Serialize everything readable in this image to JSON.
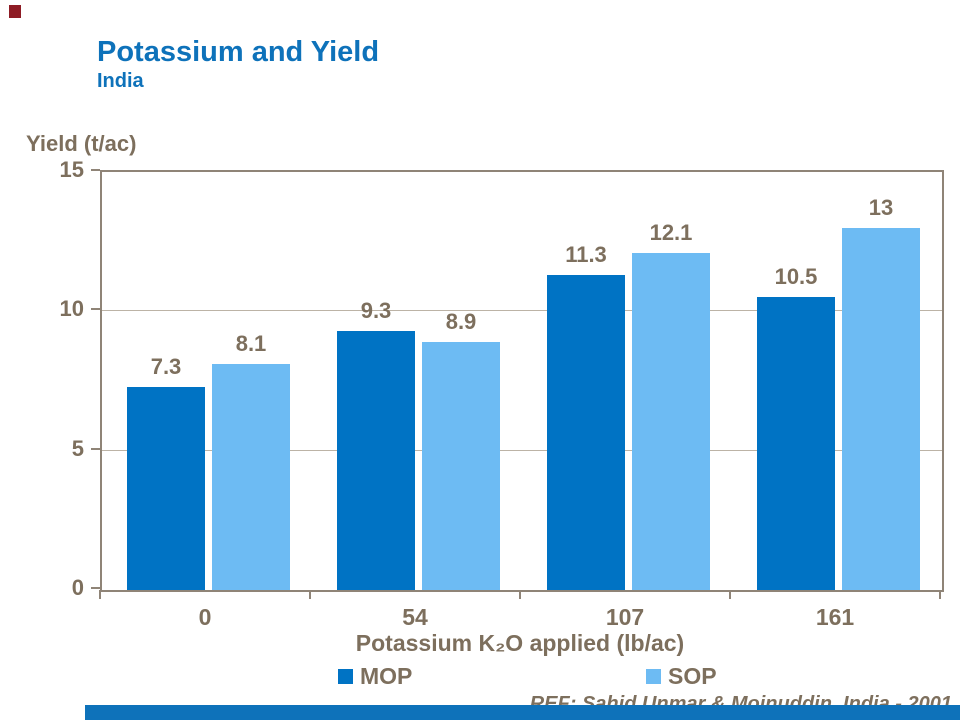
{
  "slide": {
    "title": "Potassium and Yield",
    "subtitle": "India",
    "reference": "REF: Sahid Unmar & Moinuddin, India - 2001",
    "accent_red": "#8e1c25",
    "accent_blue": "#0e72ba",
    "title_color": "#0e72ba",
    "text_color": "#7d6f5d"
  },
  "chart_data": {
    "type": "bar",
    "title": "",
    "ylabel": "Yield (t/ac)",
    "xlabel": "Potassium K₂O applied (lb/ac)",
    "categories": [
      "0",
      "54",
      "107",
      "161"
    ],
    "series": [
      {
        "name": "MOP",
        "color": "#0073c4",
        "values": [
          7.3,
          9.3,
          11.3,
          10.5
        ]
      },
      {
        "name": "SOP",
        "color": "#6dbbf3",
        "values": [
          8.1,
          8.9,
          12.1,
          13
        ]
      }
    ],
    "data_labels": [
      [
        "7.3",
        "9.3",
        "11.3",
        "10.5"
      ],
      [
        "8.1",
        "8.9",
        "12.1",
        "13"
      ]
    ],
    "ylim": [
      0,
      15
    ],
    "yticks": [
      0,
      5,
      10,
      15
    ],
    "grid": true,
    "legend_position": "bottom",
    "frame_color": "#8f8477",
    "gridline_color": "#bcb3a6"
  }
}
